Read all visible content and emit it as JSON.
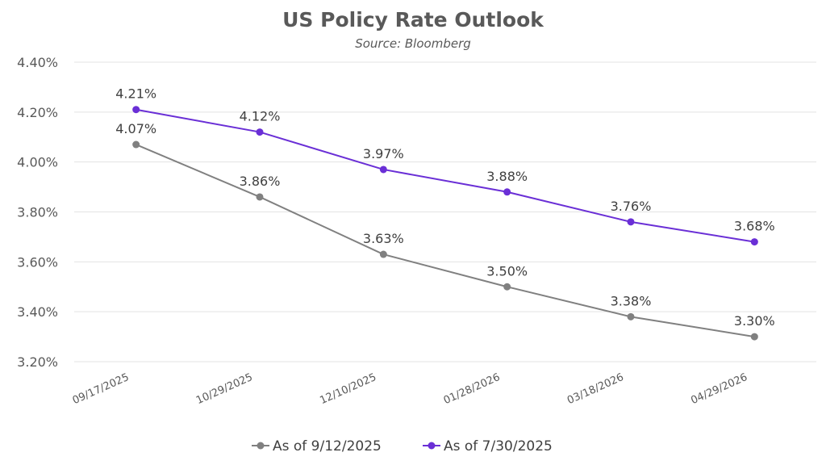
{
  "chart_data": {
    "type": "line",
    "title": "US Policy Rate Outlook",
    "subtitle": "Source: Bloomberg",
    "xlabel": "",
    "ylabel": "",
    "categories": [
      "09/17/2025",
      "10/29/2025",
      "12/10/2025",
      "01/28/2026",
      "03/18/2026",
      "04/29/2026"
    ],
    "ylim": [
      3.2,
      4.4
    ],
    "yticks": [
      3.2,
      3.4,
      3.6,
      3.8,
      4.0,
      4.2,
      4.4
    ],
    "ytick_labels": [
      "3.20%",
      "3.40%",
      "3.60%",
      "3.80%",
      "4.00%",
      "4.20%",
      "4.40%"
    ],
    "grid": "horizontal",
    "legend_position": "bottom",
    "series": [
      {
        "name": "As of 9/12/2025",
        "color": "#808080",
        "values": [
          4.07,
          3.86,
          3.63,
          3.5,
          3.38,
          3.3
        ],
        "labels": [
          "4.07%",
          "3.86%",
          "3.63%",
          "3.50%",
          "3.38%",
          "3.30%"
        ]
      },
      {
        "name": "As of 7/30/2025",
        "color": "#6a2fd6",
        "values": [
          4.21,
          4.12,
          3.97,
          3.88,
          3.76,
          3.68
        ],
        "labels": [
          "4.21%",
          "4.12%",
          "3.97%",
          "3.88%",
          "3.76%",
          "3.68%"
        ]
      }
    ]
  }
}
